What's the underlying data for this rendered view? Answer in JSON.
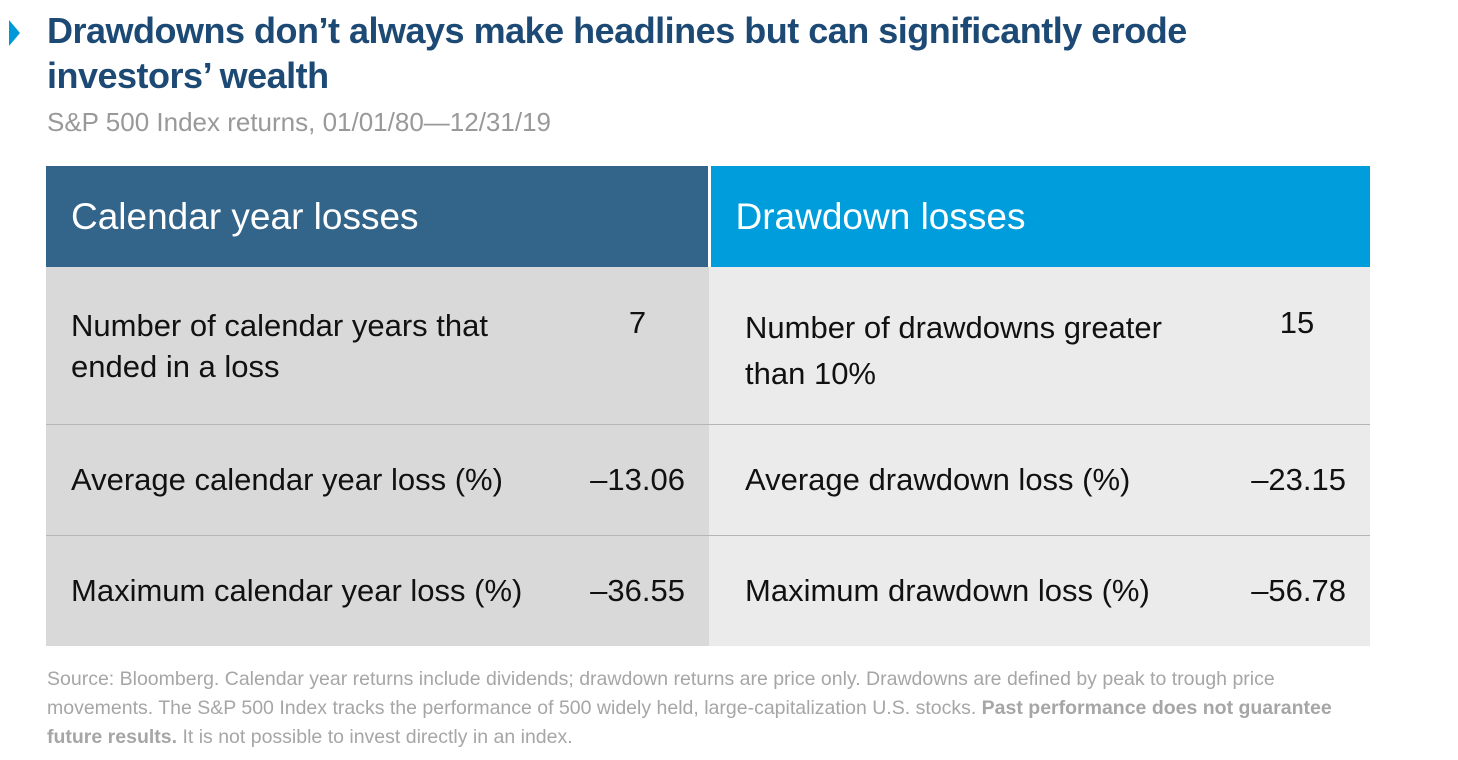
{
  "header": {
    "title": "Drawdowns don’t always make headlines but can significantly erode investors’ wealth",
    "subtitle": "S&P 500 Index returns, 01/01/80—12/31/19",
    "marker_color": "#0099d8"
  },
  "table": {
    "left_header": "Calendar year losses",
    "right_header": "Drawdown losses",
    "left_header_color": "#336489",
    "right_header_color": "#009ddc",
    "rows": [
      {
        "left_label": "Number of calendar years that ended in a loss",
        "left_value": "7",
        "right_label": "Number of drawdowns greater than 10%",
        "right_value": "15"
      },
      {
        "left_label": "Average calendar year loss (%)",
        "left_value": "–13.06",
        "right_label": "Average drawdown loss (%)",
        "right_value": "–23.15"
      },
      {
        "left_label": "Maximum calendar year loss (%)",
        "left_value": "–36.55",
        "right_label": "Maximum drawdown loss (%)",
        "right_value": "–56.78"
      }
    ]
  },
  "footnote": {
    "part1": "Source: Bloomberg. Calendar year returns include dividends; drawdown returns are price only. Drawdowns are defined by peak to trough price movements. The S&P 500 Index tracks the performance of 500 widely held, large-capitalization U.S. stocks. ",
    "bold": "Past performance does not guarantee future results.",
    "part2": " It is not possible to invest directly in an index."
  }
}
